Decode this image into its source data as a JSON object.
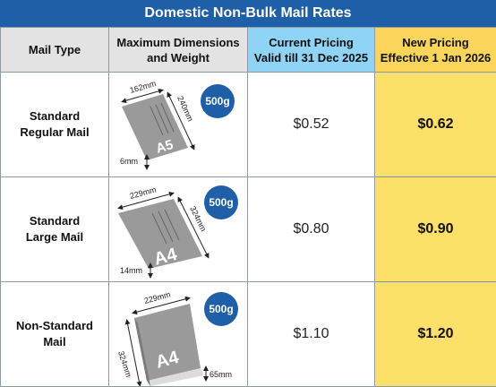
{
  "title": "Domestic Non-Bulk Mail Rates",
  "headers": {
    "type": "Mail Type",
    "dim_line1": "Maximum Dimensions",
    "dim_line2": "and Weight",
    "cur_line1": "Current Pricing",
    "cur_line2": "Valid till 31 Dec 2025",
    "new_line1": "New Pricing",
    "new_line2": "Effective 1 Jan 2026"
  },
  "rows": [
    {
      "type_line1": "Standard",
      "type_line2": "Regular Mail",
      "width": "162mm",
      "length": "240mm",
      "thickness": "6mm",
      "paper": "A5",
      "weight": "500g",
      "current": "$0.52",
      "new": "$0.62"
    },
    {
      "type_line1": "Standard",
      "type_line2": "Large Mail",
      "width": "229mm",
      "length": "324mm",
      "thickness": "14mm",
      "paper": "A4",
      "weight": "500g",
      "current": "$0.80",
      "new": "$0.90"
    },
    {
      "type_line1": "Non-Standard",
      "type_line2": "Mail",
      "width": "229mm",
      "length": "324mm",
      "thickness": "65mm",
      "paper": "A4",
      "weight": "500g",
      "current": "$1.10",
      "new": "$1.20"
    }
  ],
  "colors": {
    "title_bar": "#1f5fa8",
    "header_grey": "#e3e3e3",
    "current_header": "#8fd3f7",
    "new_header": "#fbd55a",
    "new_cell": "#fde06a",
    "weight_badge": "#1f5fa8",
    "envelope": "#9a9a9a"
  },
  "icons": [
    "envelope-icon",
    "thick-envelope-icon",
    "weight-badge-icon",
    "dimension-arrow-icon"
  ]
}
